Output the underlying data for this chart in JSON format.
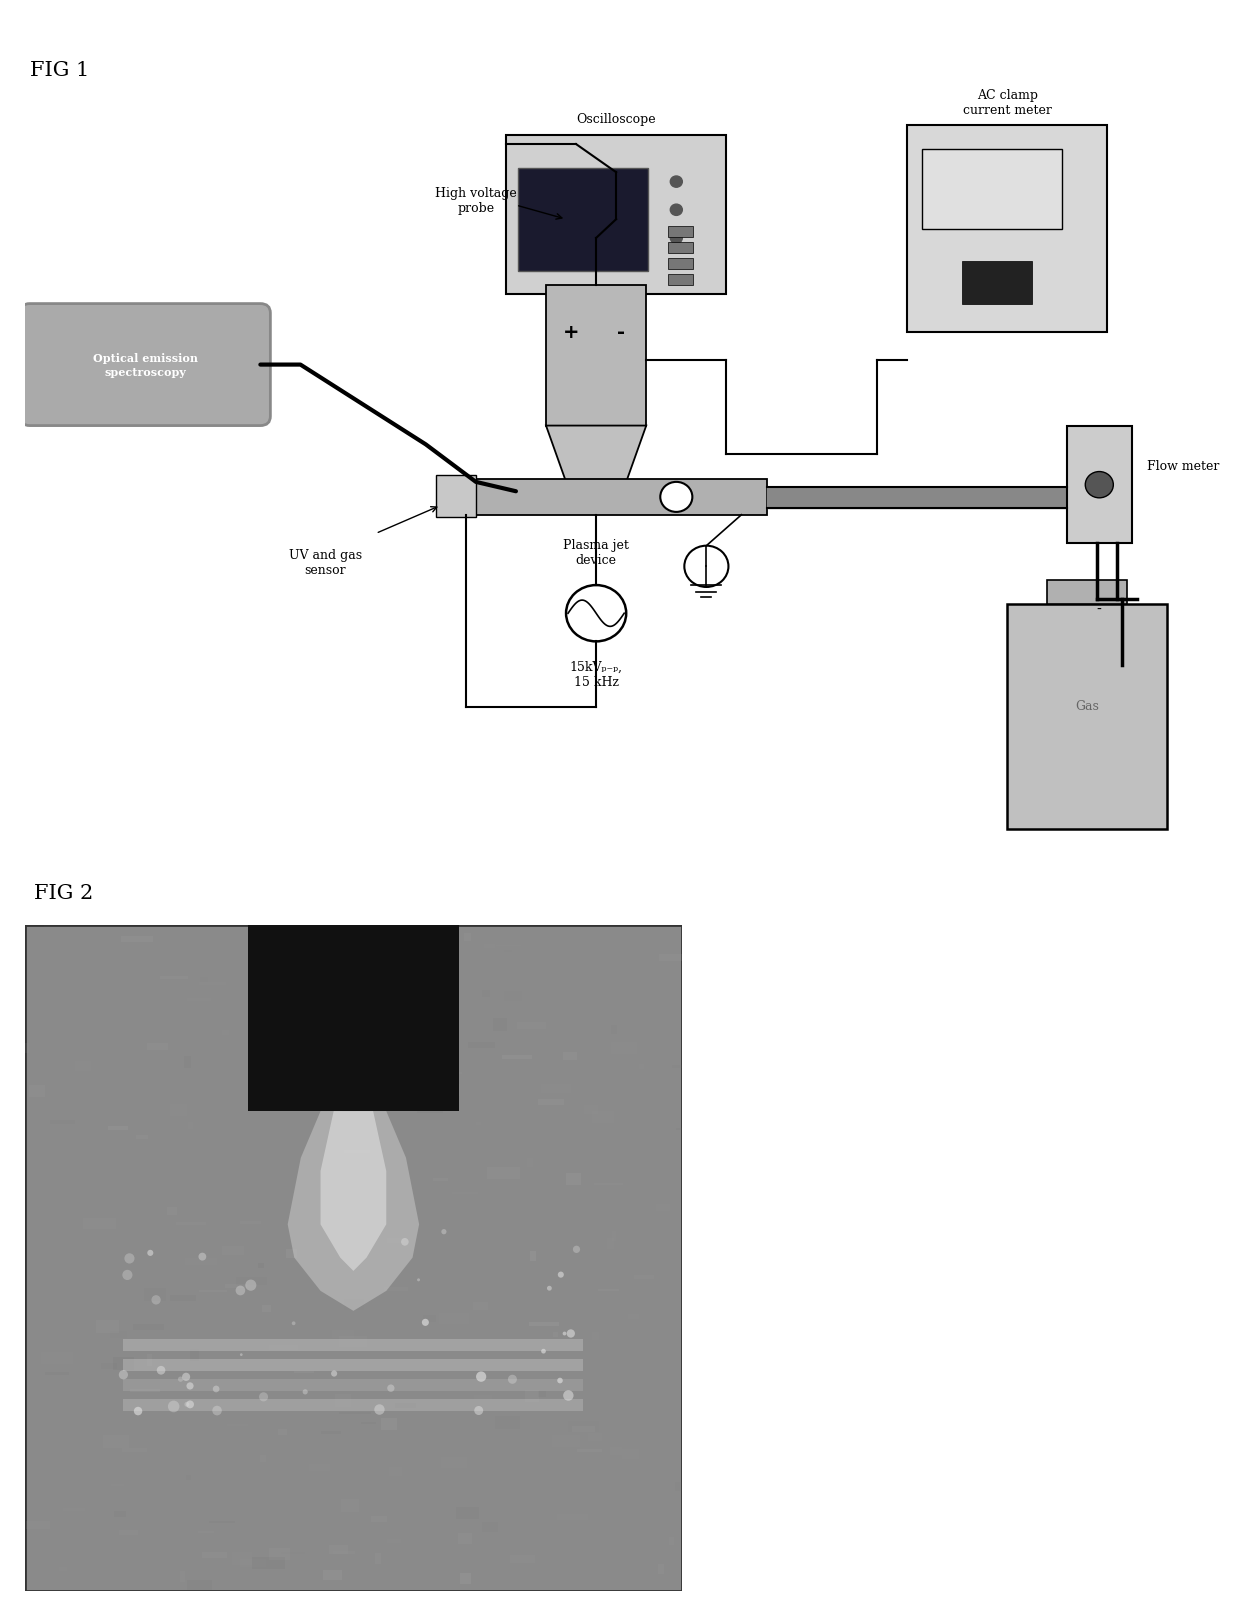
{
  "fig1_label": "FIG 1",
  "fig2_label": "FIG 2",
  "oscilloscope_label": "Oscilloscope",
  "ac_clamp_label": "AC clamp\ncurrent meter",
  "hv_probe_label": "High voltage\nprobe",
  "plasma_jet_label": "Plasma jet\ndevice",
  "uv_gas_label": "UV and gas\nsensor",
  "flow_meter_label": "Flow meter",
  "gas_label": "Gas",
  "oes_label": "Optical emission\nspectroscopy",
  "voltage_label": "15kVₚ₋ₚ,\n15 kHz",
  "plus_label": "+",
  "minus_label": "-",
  "bg_color": "#ffffff",
  "osc_screen_color": "#1a1a2e",
  "wire_color": "#000000"
}
